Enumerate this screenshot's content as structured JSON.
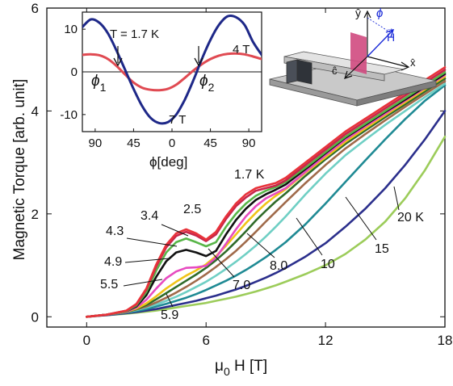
{
  "chart_data": [
    {
      "type": "line",
      "xlabel_main": "μ",
      "xlabel_sub": "0",
      "xlabel_rest": " H [T]",
      "ylabel": "Magnetic Torque  [arb. unit]",
      "xlim": [
        -2,
        18
      ],
      "ylim": [
        -0.2,
        6
      ],
      "xticks": [
        0,
        6,
        12,
        18
      ],
      "yticks": [
        0,
        2,
        4,
        6
      ],
      "grid": false,
      "series": [
        {
          "name": "1.7 K",
          "color": "#e8333a",
          "x": [
            0,
            1,
            2,
            2.5,
            3,
            3.5,
            4,
            4.5,
            5,
            5.5,
            6,
            6.5,
            7,
            7.5,
            8,
            8.5,
            9,
            9.5,
            10,
            11,
            12,
            13,
            14,
            15,
            16,
            17,
            18
          ],
          "y": [
            0,
            0.04,
            0.12,
            0.25,
            0.55,
            1.02,
            1.4,
            1.62,
            1.7,
            1.62,
            1.5,
            1.65,
            1.95,
            2.2,
            2.38,
            2.5,
            2.55,
            2.6,
            2.7,
            3.0,
            3.3,
            3.6,
            3.85,
            4.1,
            4.35,
            4.6,
            4.85
          ]
        },
        {
          "name": "2.5",
          "color": "#c8264a",
          "x": [
            0,
            1,
            2,
            2.5,
            3,
            3.5,
            4,
            4.5,
            5,
            5.5,
            6,
            6.5,
            7,
            7.5,
            8,
            8.5,
            9,
            9.5,
            10,
            11,
            12,
            13,
            14,
            15,
            16,
            17,
            18
          ],
          "y": [
            0,
            0.04,
            0.12,
            0.24,
            0.53,
            0.98,
            1.35,
            1.57,
            1.65,
            1.58,
            1.47,
            1.6,
            1.9,
            2.15,
            2.32,
            2.45,
            2.5,
            2.55,
            2.65,
            2.95,
            3.25,
            3.55,
            3.8,
            4.05,
            4.3,
            4.55,
            4.8
          ]
        },
        {
          "name": "3.4",
          "color": "#58b548",
          "x": [
            0,
            1,
            2,
            2.5,
            3,
            3.5,
            4,
            4.5,
            5,
            5.5,
            6,
            6.5,
            7,
            7.5,
            8,
            8.5,
            9,
            9.5,
            10,
            11,
            12,
            13,
            14,
            15,
            16,
            17,
            18
          ],
          "y": [
            0,
            0.04,
            0.11,
            0.22,
            0.48,
            0.9,
            1.25,
            1.45,
            1.52,
            1.45,
            1.37,
            1.45,
            1.75,
            2.0,
            2.2,
            2.35,
            2.45,
            2.52,
            2.62,
            2.9,
            3.2,
            3.5,
            3.75,
            4.0,
            4.25,
            4.5,
            4.75
          ]
        },
        {
          "name": "4.3",
          "color": "#111111",
          "x": [
            0,
            1,
            2,
            2.5,
            3,
            3.5,
            4,
            4.5,
            5,
            5.5,
            6,
            6.5,
            7,
            7.5,
            8,
            8.5,
            9,
            9.5,
            10,
            11,
            12,
            13,
            14,
            15,
            16,
            17,
            18
          ],
          "y": [
            0,
            0.04,
            0.11,
            0.2,
            0.42,
            0.78,
            1.08,
            1.25,
            1.3,
            1.25,
            1.18,
            1.28,
            1.6,
            1.88,
            2.1,
            2.27,
            2.38,
            2.47,
            2.57,
            2.87,
            3.18,
            3.48,
            3.73,
            3.98,
            4.22,
            4.47,
            4.72
          ]
        },
        {
          "name": "4.9",
          "color": "#e74bc0",
          "x": [
            0,
            1,
            2,
            2.5,
            3,
            3.5,
            4,
            4.5,
            5,
            5.5,
            6,
            6.5,
            7,
            7.5,
            8,
            8.5,
            9,
            9.5,
            10,
            11,
            12,
            13,
            14,
            15,
            16,
            17,
            18
          ],
          "y": [
            0,
            0.04,
            0.1,
            0.18,
            0.33,
            0.55,
            0.75,
            0.88,
            0.95,
            0.96,
            0.99,
            1.15,
            1.42,
            1.7,
            1.95,
            2.15,
            2.3,
            2.4,
            2.5,
            2.82,
            3.14,
            3.44,
            3.7,
            3.95,
            4.2,
            4.45,
            4.7
          ]
        },
        {
          "name": "5.5",
          "color": "#f0c419",
          "x": [
            0,
            1,
            2,
            2.5,
            3,
            3.5,
            4,
            4.5,
            5,
            5.5,
            6,
            6.5,
            7,
            7.5,
            8,
            8.5,
            9,
            9.5,
            10,
            11,
            12,
            13,
            14,
            15,
            16,
            17,
            18
          ],
          "y": [
            0,
            0.04,
            0.1,
            0.16,
            0.26,
            0.4,
            0.55,
            0.68,
            0.8,
            0.9,
            1.02,
            1.18,
            1.38,
            1.6,
            1.82,
            2.02,
            2.2,
            2.35,
            2.48,
            2.8,
            3.1,
            3.4,
            3.66,
            3.92,
            4.17,
            4.42,
            4.67
          ]
        },
        {
          "name": "5.9",
          "color": "#2f6b2a",
          "x": [
            0,
            1,
            2,
            2.5,
            3,
            3.5,
            4,
            4.5,
            5,
            5.5,
            6,
            6.5,
            7,
            7.5,
            8,
            8.5,
            9,
            9.5,
            10,
            11,
            12,
            13,
            14,
            15,
            16,
            17,
            18
          ],
          "y": [
            0,
            0.04,
            0.1,
            0.15,
            0.23,
            0.34,
            0.46,
            0.58,
            0.7,
            0.82,
            0.95,
            1.1,
            1.27,
            1.46,
            1.66,
            1.87,
            2.06,
            2.24,
            2.4,
            2.74,
            3.06,
            3.36,
            3.62,
            3.88,
            4.13,
            4.38,
            4.63
          ]
        },
        {
          "name": "7.0",
          "color": "#a06a4a",
          "x": [
            0,
            1,
            2,
            2.5,
            3,
            3.5,
            4,
            4.5,
            5,
            5.5,
            6,
            6.5,
            7,
            7.5,
            8,
            8.5,
            9,
            9.5,
            10,
            11,
            12,
            13,
            14,
            15,
            16,
            17,
            18
          ],
          "y": [
            0,
            0.04,
            0.09,
            0.14,
            0.2,
            0.28,
            0.37,
            0.47,
            0.58,
            0.7,
            0.83,
            0.97,
            1.12,
            1.28,
            1.46,
            1.65,
            1.85,
            2.04,
            2.23,
            2.6,
            2.95,
            3.27,
            3.55,
            3.82,
            4.08,
            4.33,
            4.58
          ]
        },
        {
          "name": "8.0",
          "color": "#6fcfc4",
          "x": [
            0,
            1,
            2,
            2.5,
            3,
            3.5,
            4,
            4.5,
            5,
            5.5,
            6,
            6.5,
            7,
            7.5,
            8,
            8.5,
            9,
            9.5,
            10,
            11,
            12,
            13,
            14,
            15,
            16,
            17,
            18
          ],
          "y": [
            0,
            0.04,
            0.09,
            0.13,
            0.18,
            0.24,
            0.31,
            0.39,
            0.48,
            0.58,
            0.68,
            0.8,
            0.93,
            1.07,
            1.22,
            1.38,
            1.56,
            1.75,
            1.95,
            2.38,
            2.78,
            3.14,
            3.44,
            3.73,
            4.0,
            4.27,
            4.53
          ]
        },
        {
          "name": "10",
          "color": "#1f8a94",
          "x": [
            0,
            1,
            2,
            2.5,
            3,
            3.5,
            4,
            4.5,
            5,
            5.5,
            6,
            6.5,
            7,
            7.5,
            8,
            8.5,
            9,
            9.5,
            10,
            11,
            12,
            13,
            14,
            15,
            16,
            17,
            18
          ],
          "y": [
            0,
            0.04,
            0.08,
            0.11,
            0.15,
            0.2,
            0.25,
            0.31,
            0.37,
            0.44,
            0.52,
            0.61,
            0.7,
            0.8,
            0.91,
            1.03,
            1.16,
            1.3,
            1.45,
            1.8,
            2.2,
            2.62,
            3.04,
            3.45,
            3.84,
            4.2,
            4.5
          ]
        },
        {
          "name": "15",
          "color": "#2b2f8c",
          "x": [
            0,
            1,
            2,
            2.5,
            3,
            3.5,
            4,
            4.5,
            5,
            5.5,
            6,
            6.5,
            7,
            7.5,
            8,
            8.5,
            9,
            9.5,
            10,
            11,
            12,
            13,
            14,
            15,
            16,
            17,
            18
          ],
          "y": [
            0,
            0.03,
            0.07,
            0.09,
            0.12,
            0.15,
            0.19,
            0.23,
            0.27,
            0.31,
            0.36,
            0.41,
            0.47,
            0.53,
            0.6,
            0.68,
            0.76,
            0.85,
            0.95,
            1.17,
            1.43,
            1.75,
            2.1,
            2.5,
            2.95,
            3.45,
            4.0
          ]
        },
        {
          "name": "20  K",
          "color": "#9ccc5a",
          "x": [
            0,
            1,
            2,
            2.5,
            3,
            3.5,
            4,
            4.5,
            5,
            5.5,
            6,
            6.5,
            7,
            7.5,
            8,
            8.5,
            9,
            9.5,
            10,
            11,
            12,
            13,
            14,
            15,
            16,
            17,
            18
          ],
          "y": [
            0,
            0.03,
            0.06,
            0.08,
            0.1,
            0.12,
            0.15,
            0.18,
            0.21,
            0.24,
            0.27,
            0.31,
            0.35,
            0.39,
            0.44,
            0.49,
            0.55,
            0.61,
            0.68,
            0.83,
            1.0,
            1.22,
            1.5,
            1.85,
            2.3,
            2.85,
            3.5
          ]
        }
      ]
    },
    {
      "type": "line",
      "inset": true,
      "xlabel": "ϕ[deg]",
      "xlim": [
        -105,
        105
      ],
      "ylim": [
        -14,
        14
      ],
      "xticks": [
        90,
        45,
        0,
        45,
        90
      ],
      "xtick_values": [
        -90,
        -45,
        0,
        45,
        90
      ],
      "yticks": [
        -10,
        0,
        10
      ],
      "annotations": {
        "temp": "T = 1.7 K",
        "phi1": "ϕ",
        "phi1_sub": "1",
        "phi2": "ϕ",
        "phi2_sub": "2"
      },
      "series": [
        {
          "name": "4 T",
          "color": "#e04a52",
          "x": [
            -105,
            -95,
            -85,
            -75,
            -65,
            -55,
            -45,
            -35,
            -25,
            -15,
            -5,
            5,
            15,
            25,
            35,
            45,
            55,
            65,
            75,
            85,
            95,
            105
          ],
          "y": [
            4.0,
            4.1,
            3.9,
            3.0,
            1.4,
            -0.6,
            -2.5,
            -3.7,
            -4.2,
            -4.3,
            -4.0,
            -3.0,
            -1.4,
            0.3,
            1.8,
            3.0,
            3.8,
            4.2,
            4.3,
            4.1,
            3.6,
            3.0
          ]
        },
        {
          "name": "7 T",
          "color": "#1e2888",
          "x": [
            -105,
            -95,
            -85,
            -75,
            -65,
            -55,
            -45,
            -35,
            -25,
            -15,
            -5,
            5,
            15,
            25,
            35,
            45,
            55,
            65,
            75,
            85,
            95,
            105
          ],
          "y": [
            10.5,
            12.3,
            11.5,
            9.0,
            5.0,
            0.5,
            -4.0,
            -8.0,
            -10.8,
            -12.0,
            -11.8,
            -10.0,
            -6.5,
            -2.0,
            3.0,
            7.5,
            11.0,
            13.0,
            12.8,
            11.0,
            7.0,
            4.0
          ]
        }
      ]
    }
  ],
  "series_labels": {
    "1.7 K": "1.7 K",
    "2.5": "2.5",
    "3.4": "3.4",
    "4.3": "4.3",
    "4.9": "4.9",
    "5.5": "5.5",
    "5.9": "5.9",
    "7.0": "7.0",
    "8.0": "8.0",
    "10": "10",
    "15": "15",
    "20  K": "20  K",
    "4 T": "4 T",
    "7 T": "7 T"
  },
  "diagram": {
    "y_axis": "ŷ",
    "x_axis": "x̂",
    "c_axis": "ĉ",
    "angle": "ϕ",
    "field": "H",
    "field_arrow": "→"
  },
  "colors": {
    "axis": "#111111",
    "stage": "#b8b8b8",
    "sample": "#d04a80",
    "field": "#1a2ad8"
  }
}
